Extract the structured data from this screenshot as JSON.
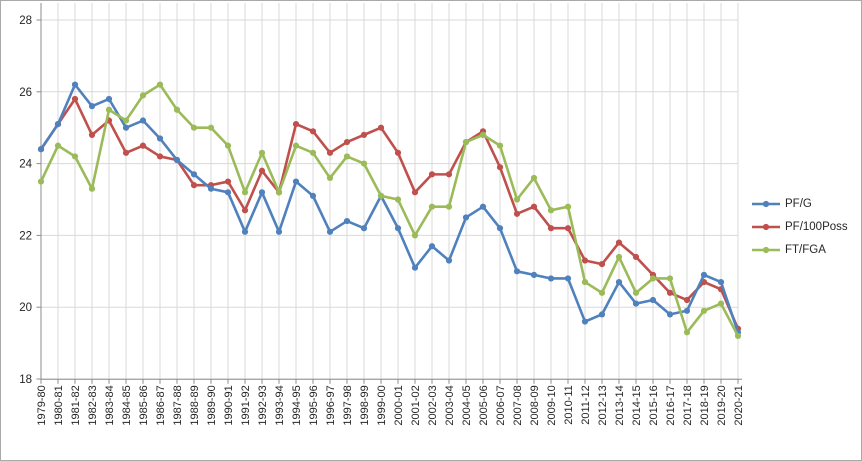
{
  "chart_data": {
    "type": "line",
    "title": "",
    "xlabel": "",
    "ylabel": "",
    "ylim": [
      18,
      28
    ],
    "yticks": [
      28,
      26,
      24,
      22,
      20,
      18
    ],
    "grid": true,
    "legend_position": "right",
    "x_tick_rotation": -90,
    "categories": [
      "1979-80",
      "1980-81",
      "1981-82",
      "1982-83",
      "1983-84",
      "1984-85",
      "1985-86",
      "1986-87",
      "1987-88",
      "1988-89",
      "1989-90",
      "1990-91",
      "1991-92",
      "1992-93",
      "1993-94",
      "1994-95",
      "1995-96",
      "1996-97",
      "1997-98",
      "1998-99",
      "1999-00",
      "2000-01",
      "2001-02",
      "2002-03",
      "2003-04",
      "2004-05",
      "2005-06",
      "2006-07",
      "2007-08",
      "2008-09",
      "2009-10",
      "2010-11",
      "2011-12",
      "2012-13",
      "2013-14",
      "2014-15",
      "2015-16",
      "2016-17",
      "2017-18",
      "2018-19",
      "2019-20",
      "2020-21"
    ],
    "series": [
      {
        "name": "PF/G",
        "color": "#4F81BD",
        "values": [
          24.4,
          25.1,
          26.2,
          25.6,
          25.8,
          25.0,
          25.2,
          24.7,
          24.1,
          23.7,
          23.3,
          23.2,
          22.1,
          23.2,
          22.1,
          23.5,
          23.1,
          22.1,
          22.4,
          22.2,
          23.1,
          22.2,
          21.1,
          21.7,
          21.3,
          22.5,
          22.8,
          22.2,
          21.0,
          20.9,
          20.8,
          20.8,
          19.6,
          19.8,
          20.7,
          20.1,
          20.2,
          19.8,
          19.9,
          20.9,
          20.7,
          19.3
        ]
      },
      {
        "name": "PF/100Poss",
        "color": "#C0504D",
        "values": [
          24.4,
          25.1,
          25.8,
          24.8,
          25.2,
          24.3,
          24.5,
          24.2,
          24.1,
          23.4,
          23.4,
          23.5,
          22.7,
          23.8,
          23.2,
          25.1,
          24.9,
          24.3,
          24.6,
          24.8,
          25.0,
          24.3,
          23.2,
          23.7,
          23.7,
          24.6,
          24.9,
          23.9,
          22.6,
          22.8,
          22.2,
          22.2,
          21.3,
          21.2,
          21.8,
          21.4,
          20.9,
          20.4,
          20.2,
          20.7,
          20.5,
          19.4
        ]
      },
      {
        "name": "FT/FGA",
        "color": "#9BBB59",
        "values": [
          23.5,
          24.5,
          24.2,
          23.3,
          25.5,
          25.2,
          25.9,
          26.2,
          25.5,
          25.0,
          25.0,
          24.5,
          23.2,
          24.3,
          23.2,
          24.5,
          24.3,
          23.6,
          24.2,
          24.0,
          23.1,
          23.0,
          22.0,
          22.8,
          22.8,
          24.6,
          24.8,
          24.5,
          23.0,
          23.6,
          22.7,
          22.8,
          20.7,
          20.4,
          21.4,
          20.4,
          20.8,
          20.8,
          19.3,
          19.9,
          20.1,
          19.2
        ]
      }
    ],
    "colors": {
      "grid": "#D9D9D9",
      "axis": "#8C8C8C",
      "tick_text": "#262626",
      "background": "#FFFFFF",
      "frame_border": "#A9A9A9"
    }
  }
}
